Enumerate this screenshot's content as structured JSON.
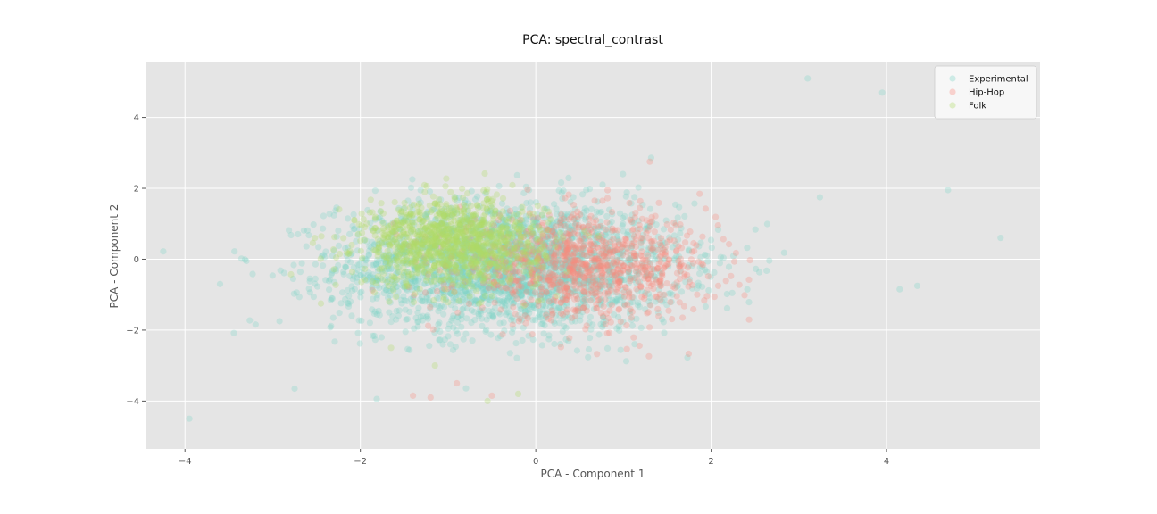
{
  "chart_data": {
    "type": "scatter",
    "title": "PCA: spectral_contrast",
    "xlabel": "PCA - Component 1",
    "ylabel": "PCA - Component 2",
    "xlim": [
      -4.45,
      5.75
    ],
    "ylim": [
      -5.35,
      5.55
    ],
    "xticks": [
      -4,
      -2,
      0,
      2,
      4
    ],
    "yticks": [
      -4,
      -2,
      0,
      2,
      4
    ],
    "xtick_labels": [
      "−4",
      "−2",
      "0",
      "2",
      "4"
    ],
    "ytick_labels": [
      "−4",
      "−2",
      "0",
      "2",
      "4"
    ],
    "grid": true,
    "legend_position": "top-right",
    "background": "#e5e5e5",
    "series": [
      {
        "name": "Experimental",
        "color": "#7fd4c6",
        "alpha": 0.3,
        "points_shown": "approx. 20000 points",
        "center": [
          -0.3,
          -0.2
        ],
        "spread": [
          1.15,
          1.05
        ],
        "outliers": [
          [
            -3.95,
            -4.5
          ],
          [
            3.1,
            5.1
          ],
          [
            3.95,
            4.7
          ],
          [
            4.7,
            1.95
          ],
          [
            5.3,
            0.6
          ],
          [
            4.35,
            -0.75
          ],
          [
            -2.75,
            -3.65
          ],
          [
            -3.3,
            -0.05
          ],
          [
            4.15,
            -0.85
          ],
          [
            -3.6,
            -0.7
          ]
        ]
      },
      {
        "name": "Hip-Hop",
        "color": "#f88a7e",
        "alpha": 0.3,
        "points_shown": "approx. 7000 points",
        "center": [
          0.55,
          -0.2
        ],
        "spread": [
          0.85,
          0.85
        ],
        "outliers": [
          [
            -1.2,
            -3.9
          ],
          [
            -0.9,
            -3.5
          ],
          [
            -0.5,
            -3.85
          ],
          [
            -1.4,
            -3.85
          ],
          [
            1.3,
            2.75
          ]
        ]
      },
      {
        "name": "Folk",
        "color": "#b0d966",
        "alpha": 0.3,
        "points_shown": "approx. 9000 points",
        "center": [
          -0.95,
          0.45
        ],
        "spread": [
          0.6,
          0.7
        ],
        "outliers": [
          [
            -1.15,
            -3.0
          ],
          [
            -0.55,
            -4.0
          ],
          [
            -2.45,
            -1.25
          ],
          [
            -1.65,
            -2.5
          ],
          [
            -0.2,
            -3.8
          ]
        ]
      }
    ]
  }
}
